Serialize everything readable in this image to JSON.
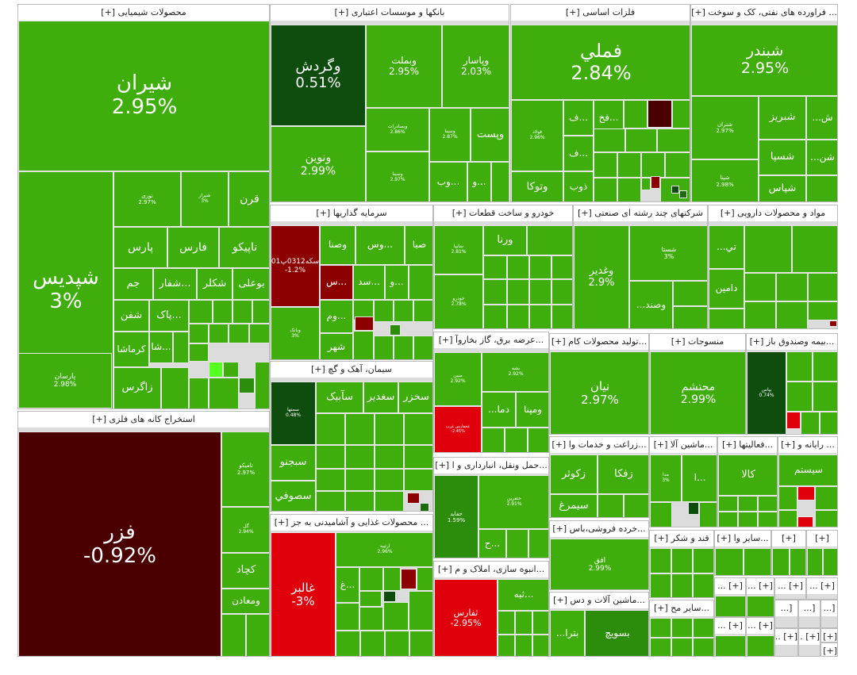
{
  "sectors": {
    "chem": "محصولات شیمیایی [+]",
    "bank": "بانکها و موسسات اعتباری [+]",
    "metal": "فلزات اساسی [+]",
    "oil": "... فراورده های نفتی، کک و سوخت [+]",
    "invest": "سرمایه گذاریها [+]",
    "auto": "خودرو و ساخت قطعات [+]",
    "multi": "شرکتهای چند رشته ای صنعتی [+]",
    "pharma": "مواد و محصولات دارویی [+]",
    "mining": "استخراج کانه های فلزی [+]",
    "cement": "سیمان، آهک و گچ [+]",
    "electric": "...عرضه برق، گاز بخاروآ [+]",
    "food": "... محصولات غذایی و آشامیدنی به جز [+]",
    "transport": "...حمل ونقل، انبارداری و ا [+]",
    "construction": "...انبوه سازی، املاک و م [+]",
    "rubber": "...تولید محصولات کام [+]",
    "textile": "منسوجات [+]",
    "insurance": "...بیمه وصندوق باز [+]",
    "agri": "...زراعت و خدمات وا [+]",
    "machinery": "...ماشین آلا [+]",
    "misc_act": "...فعالیتها [+]",
    "computer": "... رایانه و [+]",
    "retail": "...خرده فروشی،باس [+]",
    "sugar": "قند و شکر [+]",
    "other1": "...سایر وا [+]",
    "other2": "...سایر مح [+]",
    "eqp": "...ماشین آلات و دس [+]",
    "t1": "[+]",
    "t2": "[+]",
    "t3": "[+] ...",
    "t4": "[+] ...",
    "t5": "[+] ...",
    "t6": "[+] ...",
    "t7": "[+] ...",
    "t8": "[+] ...",
    "t9": "[+] ...",
    "t10": "[+] ...",
    "t11": "[+] ...",
    "t12": "[+] ...",
    "t13": "[...",
    "t14": "[...",
    "t15": "[..."
  },
  "tiles": {
    "shiran": {
      "name": "شیران",
      "chg": "2.95%"
    },
    "shpdis": {
      "name": "شپدیس",
      "chg": "3%"
    },
    "nori": {
      "name": "نوری",
      "chg": "2.97%"
    },
    "shiraz": {
      "name": "شیراز",
      "chg": "3%"
    },
    "qarn": "قرن",
    "pars": "پارس",
    "fars": "فارس",
    "tapiko": "تاپیکو",
    "jam": "جم",
    "shafar": "شفار...",
    "shaklr": "شکلر",
    "boali": "بوعلی",
    "shafan": "شفن",
    "pak": "پاک...",
    "sha": "شا...",
    "kermasha": "کرماشا",
    "zagros": "زاگرس",
    "parsan": {
      "name": "پارسان",
      "chg": "2.98%"
    },
    "vagardesh": {
      "name": "وگردش",
      "chg": "0.51%"
    },
    "vabmellat": {
      "name": "وبملت",
      "chg": "2.95%"
    },
    "vapasar": {
      "name": "وپاسار",
      "chg": "2.03%"
    },
    "vanovin": {
      "name": "ونوین",
      "chg": "2.99%"
    },
    "vbsadrat": {
      "name": "وبصادرات",
      "chg": "2.86%"
    },
    "vsina": {
      "name": "وسینا",
      "chg": "2.87%"
    },
    "vpost": "وپست",
    "vasina2": {
      "name": "وسینا",
      "chg": "2.97%"
    },
    "vob": "وب...",
    "vo": "و...",
    "fameli": {
      "name": "فملي",
      "chg": "2.84%"
    },
    "foolad": {
      "name": "فولاد",
      "chg": "2.96%"
    },
    "fa": "ف...",
    "fakh": "فخ...",
    "fa2": "ف...",
    "zob": "ذوب",
    "vtoka": "وتوكا",
    "shabandar": {
      "name": "شبندر",
      "chg": "2.95%"
    },
    "shatran": {
      "name": "شتران",
      "chg": "2.97%"
    },
    "shabriz": "شبریز",
    "shesh": "...ش",
    "shespa": "شسپا",
    "shsn": "...شن",
    "shpna": {
      "name": "شپنا",
      "chg": "2.98%"
    },
    "shapas": "شپاس",
    "sekke": {
      "name": "سکه0312پ01",
      "chg": "-1.2%"
    },
    "vosna": "وصنا",
    "vos": "وس...",
    "saba": "صبا",
    "s": "س...",
    "sd": "سد...",
    "vo2": "و...",
    "vom": "وم...",
    "vbank": {
      "name": "وبانک",
      "chg": "3%"
    },
    "shahr": "شهر",
    "sayta": {
      "name": "سایپا",
      "chg": "2.81%"
    },
    "varna": "ورنا",
    "khodro": {
      "name": "خودرو",
      "chg": "2.78%"
    },
    "shasta": {
      "name": "شستا",
      "chg": "3%"
    },
    "vaghadir": {
      "name": "وغدیر",
      "chg": "2.9%"
    },
    "vsand": "...وصند",
    "ti": "...تي",
    "damin": "دامین",
    "fazr": {
      "name": "فزر",
      "chg": "-0.92%"
    },
    "tamiko": {
      "name": "تامیکو",
      "chg": "2.97%"
    },
    "gol": {
      "name": "گل",
      "chg": "2.94%"
    },
    "kchad": "کچاد",
    "vmaaden": "ومعادن",
    "semtha": {
      "name": "سمتها",
      "chg": "0.48%"
    },
    "sabik": "سآبیک",
    "saghdir": "سغدیر",
    "sakhzar": "سخزر",
    "sebjno": "سبجنو",
    "sofi": "سصوفي",
    "mbin": {
      "name": "مبین",
      "chg": "2.92%"
    },
    "bsheh": {
      "name": "بشه",
      "chg": "2.92%"
    },
    "dma": "...دما",
    "vmapna": "ومپنا",
    "ghakhzar": {
      "name": "غحفارس غرب",
      "chg": "-2.45%"
    },
    "ghalbar": {
      "name": "غالبر",
      "chg": "-3%"
    },
    "ghaltrm": {
      "name": "ارتیبد",
      "chg": "2.96%"
    },
    "gh": "غ...",
    "hafarnd": {
      "name": "حفاید",
      "chg": "1.59%"
    },
    "hpars": {
      "name": "حتفرین",
      "chg": "2.91%"
    },
    "h": "ح...",
    "tfars": {
      "name": "ثفارس",
      "chg": "-2.95%"
    },
    "tbeh": "ثبه...",
    "nian": {
      "name": "نیان",
      "chg": "2.97%"
    },
    "mohtasham": {
      "name": "محتشم",
      "chg": "2.99%"
    },
    "bapas": {
      "name": "بپاس",
      "chg": "0.74%"
    },
    "zkowsar": "زکوثر",
    "zfka": "زفکا",
    "simargh": "سیمرغ",
    "ma": {
      "name": "مدا",
      "chg": "3%"
    },
    "a": "ا...",
    "kala": "کالا",
    "system": "سیستم",
    "afogh": {
      "name": "افق",
      "chg": "2.99%"
    },
    "bsawich": "بسویچ",
    "bbtra": "...بترا"
  }
}
